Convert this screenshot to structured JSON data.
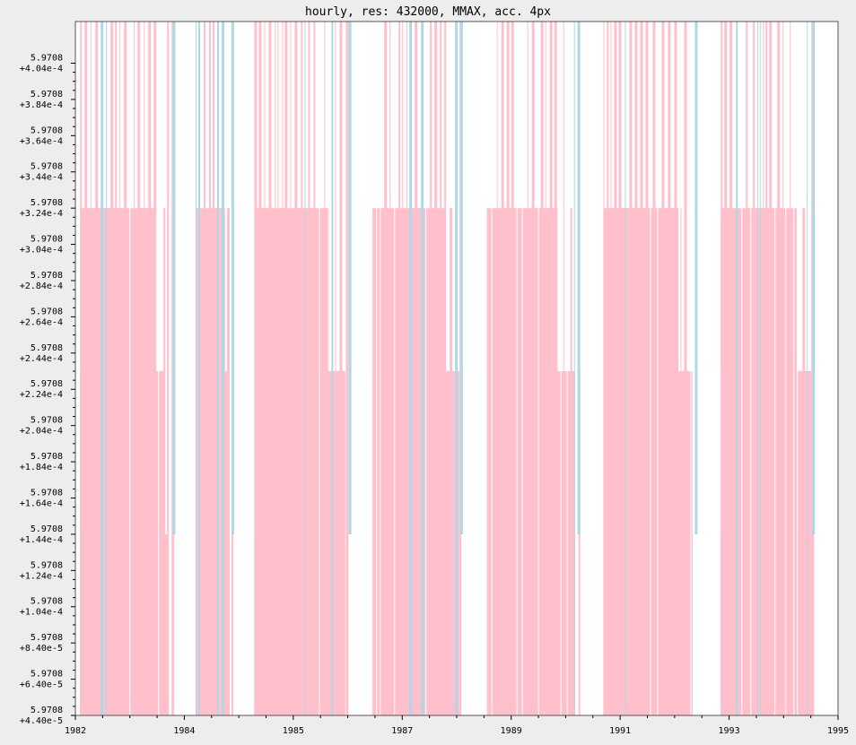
{
  "chart_data": {
    "type": "bar",
    "title": "hourly, res: 432000, MMAX, acc. 4px",
    "xlabel": "",
    "ylabel": "",
    "x_ticks": [
      "1982",
      "1984",
      "1985",
      "1987",
      "1989",
      "1991",
      "1993",
      "1995"
    ],
    "xlim": [
      1982.0,
      1995.0
    ],
    "y_ticks": [
      {
        "line1": "5.9708",
        "line2": "+4.40e-5"
      },
      {
        "line1": "5.9708",
        "line2": "+6.40e-5"
      },
      {
        "line1": "5.9708",
        "line2": "+8.40e-5"
      },
      {
        "line1": "5.9708",
        "line2": "+1.04e-4"
      },
      {
        "line1": "5.9708",
        "line2": "+1.24e-4"
      },
      {
        "line1": "5.9708",
        "line2": "+1.44e-4"
      },
      {
        "line1": "5.9708",
        "line2": "+1.64e-4"
      },
      {
        "line1": "5.9708",
        "line2": "+1.84e-4"
      },
      {
        "line1": "5.9708",
        "line2": "+2.04e-4"
      },
      {
        "line1": "5.9708",
        "line2": "+2.24e-4"
      },
      {
        "line1": "5.9708",
        "line2": "+2.44e-4"
      },
      {
        "line1": "5.9708",
        "line2": "+2.64e-4"
      },
      {
        "line1": "5.9708",
        "line2": "+2.84e-4"
      },
      {
        "line1": "5.9708",
        "line2": "+3.04e-4"
      },
      {
        "line1": "5.9708",
        "line2": "+3.24e-4"
      },
      {
        "line1": "5.9708",
        "line2": "+3.44e-4"
      },
      {
        "line1": "5.9708",
        "line2": "+3.64e-4"
      },
      {
        "line1": "5.9708",
        "line2": "+3.84e-4"
      },
      {
        "line1": "5.9708",
        "line2": "+4.04e-4"
      }
    ],
    "ylim_offset": [
      4.4e-05,
      0.000427
    ],
    "y_offset_base": 5.9708,
    "grid": false,
    "legend": "none",
    "colors": {
      "primary": "#ffc0cb",
      "secondary": "#add8e6",
      "background": "#ffffff",
      "frame": "#ededed"
    },
    "levels_offset": [
      0.000144,
      0.000234,
      0.000324,
      0.000427
    ],
    "blocks": [
      {
        "start": 1982.08,
        "end": 1983.72,
        "pink_end": 1983.58,
        "step1": 1982.42,
        "step2": 1983.35,
        "step3": 1983.52
      },
      {
        "start": 1984.05,
        "end": 1984.72,
        "pink_end": 1984.62,
        "step1": 1984.12,
        "step2": 1984.55,
        "step3": 1984.62
      },
      {
        "start": 1985.05,
        "end": 1986.72,
        "pink_end": 1986.58,
        "step1": 1985.1,
        "step2": 1986.3,
        "step3": 1986.6
      },
      {
        "start": 1987.05,
        "end": 1988.62,
        "pink_end": 1988.5,
        "step1": 1987.08,
        "step2": 1988.3,
        "step3": 1988.55
      },
      {
        "start": 1989.0,
        "end": 1990.62,
        "pink_end": 1990.52,
        "step1": 1989.02,
        "step2": 1990.22,
        "step3": 1990.52
      },
      {
        "start": 1991.0,
        "end": 1992.62,
        "pink_end": 1992.52,
        "step1": 1991.02,
        "step2": 1992.28,
        "step3": 1992.52
      },
      {
        "start": 1993.0,
        "end": 1994.62,
        "pink_end": 1994.55,
        "step1": 1993.02,
        "step2": 1994.3,
        "step3": 1994.55
      }
    ]
  }
}
